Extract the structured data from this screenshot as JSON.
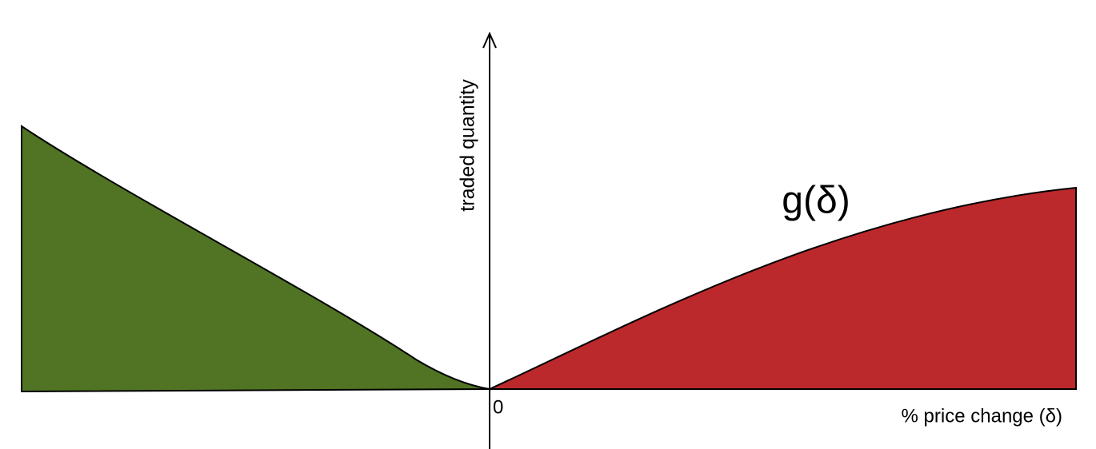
{
  "axes": {
    "y_label": "traded quantity",
    "x_label": "% price change (δ)",
    "origin_label": "0"
  },
  "curve_label": "g(δ)"
}
